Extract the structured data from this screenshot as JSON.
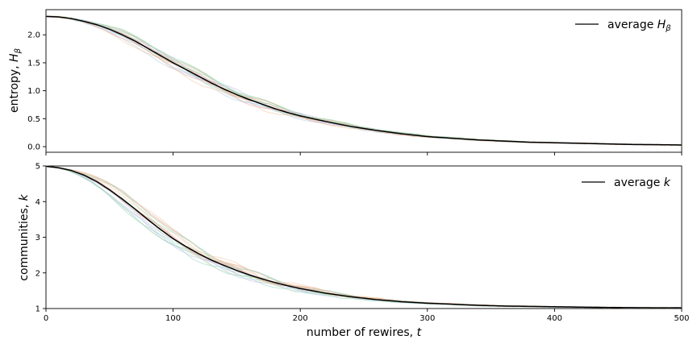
{
  "chart_data": [
    {
      "type": "line",
      "ylabel_main": "entropy, ",
      "ylabel_sym": "H",
      "ylabel_sub": "β",
      "ylim": [
        -0.1,
        2.45
      ],
      "yticks": [
        "0.0",
        "0.5",
        "1.0",
        "1.5",
        "2.0"
      ],
      "ytick_values": [
        0.0,
        0.5,
        1.0,
        1.5,
        2.0
      ],
      "xlim": [
        0,
        500
      ],
      "legend_position": "top-right",
      "legend_main": "average ",
      "legend_sym": "H",
      "legend_sub": "β",
      "series_average": {
        "color": "#000000",
        "x": [
          0,
          10,
          20,
          30,
          40,
          50,
          60,
          70,
          80,
          90,
          100,
          110,
          120,
          130,
          140,
          150,
          160,
          170,
          180,
          190,
          200,
          220,
          240,
          260,
          280,
          300,
          320,
          340,
          360,
          380,
          400,
          420,
          440,
          460,
          480,
          500
        ],
        "values": [
          2.33,
          2.32,
          2.29,
          2.24,
          2.18,
          2.1,
          2.0,
          1.89,
          1.76,
          1.63,
          1.5,
          1.38,
          1.26,
          1.14,
          1.03,
          0.93,
          0.84,
          0.76,
          0.68,
          0.61,
          0.55,
          0.45,
          0.36,
          0.29,
          0.23,
          0.18,
          0.15,
          0.12,
          0.1,
          0.08,
          0.07,
          0.06,
          0.05,
          0.04,
          0.035,
          0.03
        ]
      }
    },
    {
      "type": "line",
      "ylabel_main": "communities, ",
      "ylabel_sym": "k",
      "ylim": [
        1,
        5
      ],
      "yticks": [
        "1",
        "2",
        "3",
        "4",
        "5"
      ],
      "ytick_values": [
        1,
        2,
        3,
        4,
        5
      ],
      "xlim": [
        0,
        500
      ],
      "xticks": [
        "0",
        "100",
        "200",
        "300",
        "400",
        "500"
      ],
      "xtick_values": [
        0,
        100,
        200,
        300,
        400,
        500
      ],
      "xlabel_main": "number of rewires, ",
      "xlabel_sym": "t",
      "legend_position": "top-right",
      "legend_main": "average ",
      "legend_sym": "k",
      "series_average": {
        "color": "#000000",
        "x": [
          0,
          10,
          20,
          30,
          40,
          50,
          60,
          70,
          80,
          90,
          100,
          110,
          120,
          130,
          140,
          150,
          160,
          170,
          180,
          190,
          200,
          220,
          240,
          260,
          280,
          300,
          320,
          340,
          360,
          380,
          400,
          420,
          440,
          460,
          480,
          500
        ],
        "values": [
          4.99,
          4.95,
          4.87,
          4.74,
          4.56,
          4.33,
          4.07,
          3.79,
          3.5,
          3.22,
          2.96,
          2.74,
          2.54,
          2.36,
          2.21,
          2.07,
          1.94,
          1.83,
          1.73,
          1.64,
          1.56,
          1.43,
          1.33,
          1.25,
          1.19,
          1.15,
          1.12,
          1.09,
          1.07,
          1.06,
          1.05,
          1.04,
          1.03,
          1.025,
          1.02,
          1.02
        ]
      }
    }
  ],
  "run_colors": [
    "#e8a48a",
    "#8fd3c4",
    "#9ed8b5",
    "#c7b6df",
    "#f1c39a",
    "#a8cfe6",
    "#f0a49a",
    "#b7dda0"
  ]
}
